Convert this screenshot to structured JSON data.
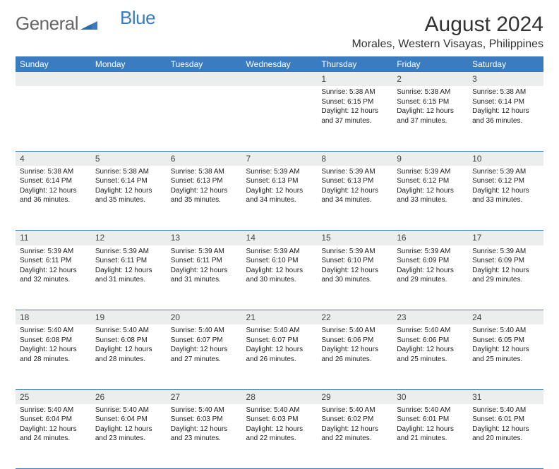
{
  "logo": {
    "text1": "General",
    "text2": "Blue"
  },
  "title": "August 2024",
  "location": "Morales, Western Visayas, Philippines",
  "colors": {
    "header_bg": "#3b7bbf",
    "header_fg": "#ffffff",
    "daynum_bg": "#eceded",
    "rule": "#3b7bbf"
  },
  "weekdays": [
    "Sunday",
    "Monday",
    "Tuesday",
    "Wednesday",
    "Thursday",
    "Friday",
    "Saturday"
  ],
  "weeks": [
    [
      null,
      null,
      null,
      null,
      {
        "n": "1",
        "sr": "5:38 AM",
        "ss": "6:15 PM",
        "dl": "12 hours and 37 minutes."
      },
      {
        "n": "2",
        "sr": "5:38 AM",
        "ss": "6:15 PM",
        "dl": "12 hours and 37 minutes."
      },
      {
        "n": "3",
        "sr": "5:38 AM",
        "ss": "6:14 PM",
        "dl": "12 hours and 36 minutes."
      }
    ],
    [
      {
        "n": "4",
        "sr": "5:38 AM",
        "ss": "6:14 PM",
        "dl": "12 hours and 36 minutes."
      },
      {
        "n": "5",
        "sr": "5:38 AM",
        "ss": "6:14 PM",
        "dl": "12 hours and 35 minutes."
      },
      {
        "n": "6",
        "sr": "5:38 AM",
        "ss": "6:13 PM",
        "dl": "12 hours and 35 minutes."
      },
      {
        "n": "7",
        "sr": "5:39 AM",
        "ss": "6:13 PM",
        "dl": "12 hours and 34 minutes."
      },
      {
        "n": "8",
        "sr": "5:39 AM",
        "ss": "6:13 PM",
        "dl": "12 hours and 34 minutes."
      },
      {
        "n": "9",
        "sr": "5:39 AM",
        "ss": "6:12 PM",
        "dl": "12 hours and 33 minutes."
      },
      {
        "n": "10",
        "sr": "5:39 AM",
        "ss": "6:12 PM",
        "dl": "12 hours and 33 minutes."
      }
    ],
    [
      {
        "n": "11",
        "sr": "5:39 AM",
        "ss": "6:11 PM",
        "dl": "12 hours and 32 minutes."
      },
      {
        "n": "12",
        "sr": "5:39 AM",
        "ss": "6:11 PM",
        "dl": "12 hours and 31 minutes."
      },
      {
        "n": "13",
        "sr": "5:39 AM",
        "ss": "6:11 PM",
        "dl": "12 hours and 31 minutes."
      },
      {
        "n": "14",
        "sr": "5:39 AM",
        "ss": "6:10 PM",
        "dl": "12 hours and 30 minutes."
      },
      {
        "n": "15",
        "sr": "5:39 AM",
        "ss": "6:10 PM",
        "dl": "12 hours and 30 minutes."
      },
      {
        "n": "16",
        "sr": "5:39 AM",
        "ss": "6:09 PM",
        "dl": "12 hours and 29 minutes."
      },
      {
        "n": "17",
        "sr": "5:39 AM",
        "ss": "6:09 PM",
        "dl": "12 hours and 29 minutes."
      }
    ],
    [
      {
        "n": "18",
        "sr": "5:40 AM",
        "ss": "6:08 PM",
        "dl": "12 hours and 28 minutes."
      },
      {
        "n": "19",
        "sr": "5:40 AM",
        "ss": "6:08 PM",
        "dl": "12 hours and 28 minutes."
      },
      {
        "n": "20",
        "sr": "5:40 AM",
        "ss": "6:07 PM",
        "dl": "12 hours and 27 minutes."
      },
      {
        "n": "21",
        "sr": "5:40 AM",
        "ss": "6:07 PM",
        "dl": "12 hours and 26 minutes."
      },
      {
        "n": "22",
        "sr": "5:40 AM",
        "ss": "6:06 PM",
        "dl": "12 hours and 26 minutes."
      },
      {
        "n": "23",
        "sr": "5:40 AM",
        "ss": "6:06 PM",
        "dl": "12 hours and 25 minutes."
      },
      {
        "n": "24",
        "sr": "5:40 AM",
        "ss": "6:05 PM",
        "dl": "12 hours and 25 minutes."
      }
    ],
    [
      {
        "n": "25",
        "sr": "5:40 AM",
        "ss": "6:04 PM",
        "dl": "12 hours and 24 minutes."
      },
      {
        "n": "26",
        "sr": "5:40 AM",
        "ss": "6:04 PM",
        "dl": "12 hours and 23 minutes."
      },
      {
        "n": "27",
        "sr": "5:40 AM",
        "ss": "6:03 PM",
        "dl": "12 hours and 23 minutes."
      },
      {
        "n": "28",
        "sr": "5:40 AM",
        "ss": "6:03 PM",
        "dl": "12 hours and 22 minutes."
      },
      {
        "n": "29",
        "sr": "5:40 AM",
        "ss": "6:02 PM",
        "dl": "12 hours and 22 minutes."
      },
      {
        "n": "30",
        "sr": "5:40 AM",
        "ss": "6:01 PM",
        "dl": "12 hours and 21 minutes."
      },
      {
        "n": "31",
        "sr": "5:40 AM",
        "ss": "6:01 PM",
        "dl": "12 hours and 20 minutes."
      }
    ]
  ],
  "labels": {
    "sunrise": "Sunrise:",
    "sunset": "Sunset:",
    "daylight": "Daylight:"
  }
}
